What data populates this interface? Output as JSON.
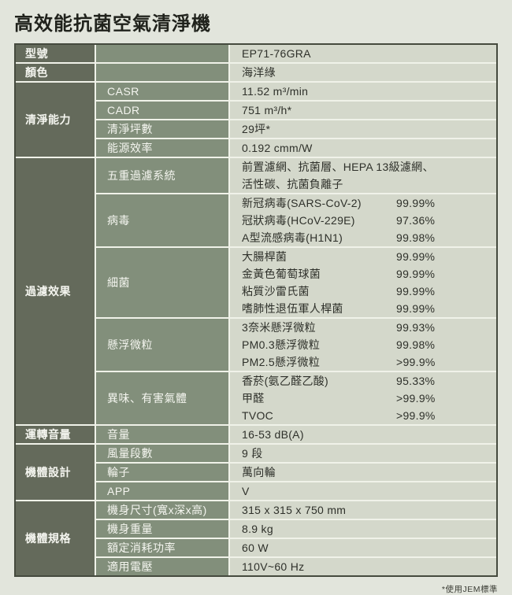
{
  "title": "高效能抗菌空氣清淨機",
  "footnote": "*使用JEM標準",
  "colors": {
    "page_background": "#e2e5dc",
    "category_cell": "#646a5b",
    "label_cell": "#828f7b",
    "value_cell": "#d4d8cb",
    "grid_line": "#f0f2e9",
    "outer_border": "#454a3e",
    "label_text": "#f4f5ef",
    "value_text": "#2e302a"
  },
  "table": {
    "sections": [
      {
        "category": "型號",
        "rows": [
          {
            "label": "",
            "lines": [
              {
                "name": "EP71-76GRA"
              }
            ]
          }
        ]
      },
      {
        "category": "顏色",
        "rows": [
          {
            "label": "",
            "lines": [
              {
                "name": "海洋綠"
              }
            ]
          }
        ]
      },
      {
        "category": "清淨能力",
        "rows": [
          {
            "label": "CASR",
            "lines": [
              {
                "name": "11.52 m³/min"
              }
            ]
          },
          {
            "label": "CADR",
            "lines": [
              {
                "name": "751 m³/h*"
              }
            ]
          },
          {
            "label": "清淨坪數",
            "lines": [
              {
                "name": "29坪*"
              }
            ]
          },
          {
            "label": "能源效率",
            "lines": [
              {
                "name": "0.192 cmm/W"
              }
            ]
          }
        ]
      },
      {
        "category": "過濾效果",
        "rows": [
          {
            "label": "五重過濾系統",
            "lines": [
              {
                "name": "前置濾網、抗菌層、HEPA 13級濾網、"
              },
              {
                "name": "活性碳、抗菌負離子"
              }
            ]
          },
          {
            "label": "病毒",
            "lines": [
              {
                "name": "新冠病毒(SARS-CoV-2)",
                "pct": "99.99%"
              },
              {
                "name": "冠狀病毒(HCoV-229E)",
                "pct": "97.36%"
              },
              {
                "name": "A型流感病毒(H1N1)",
                "pct": "99.98%"
              }
            ]
          },
          {
            "label": "細菌",
            "lines": [
              {
                "name": "大腸桿菌",
                "pct": "99.99%"
              },
              {
                "name": "金黃色葡萄球菌",
                "pct": "99.99%"
              },
              {
                "name": "粘質沙雷氏菌",
                "pct": "99.99%"
              },
              {
                "name": "嗜肺性退伍軍人桿菌",
                "pct": "99.99%"
              }
            ]
          },
          {
            "label": "懸浮微粒",
            "lines": [
              {
                "name": "3奈米懸浮微粒",
                "pct": "99.93%"
              },
              {
                "name": "PM0.3懸浮微粒",
                "pct": "99.98%"
              },
              {
                "name": "PM2.5懸浮微粒",
                "pct": ">99.9%"
              }
            ]
          },
          {
            "label": "異味、有害氣體",
            "lines": [
              {
                "name": "香菸(氨乙醛乙酸)",
                "pct": "95.33%"
              },
              {
                "name": "甲醛",
                "pct": ">99.9%"
              },
              {
                "name": "TVOC",
                "pct": ">99.9%"
              }
            ]
          }
        ]
      },
      {
        "category": "運轉音量",
        "rows": [
          {
            "label": "音量",
            "lines": [
              {
                "name": "16-53 dB(A)"
              }
            ]
          }
        ]
      },
      {
        "category": "機體設計",
        "rows": [
          {
            "label": "風量段數",
            "lines": [
              {
                "name": "9 段"
              }
            ]
          },
          {
            "label": "輪子",
            "lines": [
              {
                "name": "萬向輪"
              }
            ]
          },
          {
            "label": "APP",
            "lines": [
              {
                "name": "V"
              }
            ]
          }
        ]
      },
      {
        "category": "機體規格",
        "rows": [
          {
            "label": "機身尺寸(寬x深x高)",
            "lines": [
              {
                "name": "315 x 315 x 750 mm"
              }
            ]
          },
          {
            "label": "機身重量",
            "lines": [
              {
                "name": "8.9 kg"
              }
            ]
          },
          {
            "label": "額定消耗功率",
            "lines": [
              {
                "name": "60 W"
              }
            ]
          },
          {
            "label": "適用電壓",
            "lines": [
              {
                "name": "110V~60 Hz"
              }
            ]
          }
        ]
      }
    ]
  }
}
